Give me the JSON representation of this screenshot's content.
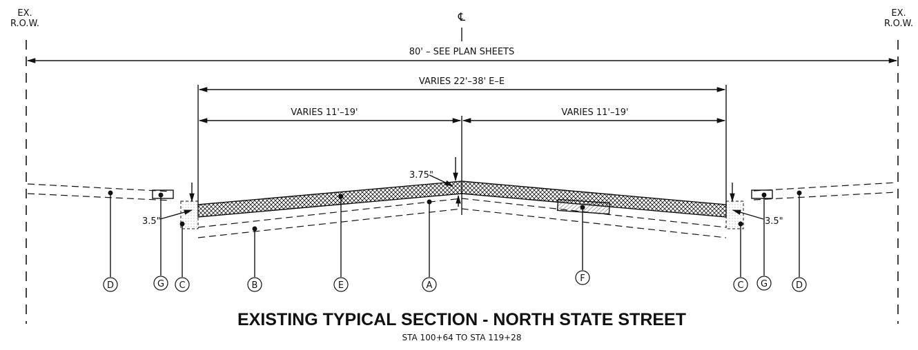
{
  "labels": {
    "row_left_line1": "EX.",
    "row_left_line2": "R.O.W.",
    "row_right_line1": "EX.",
    "row_right_line2": "R.O.W.",
    "centerline": "℄",
    "total_width": "80' – SEE PLAN SHEETS",
    "pavement_width": "VARIES 22'–38' E–E",
    "left_lane": "VARIES 11'–19'",
    "right_lane": "VARIES 11'–19'",
    "crown_thickness": "3.75\"",
    "left_edge_thickness": "3.5\"",
    "right_edge_thickness": "3.5\""
  },
  "callouts": [
    "D",
    "G",
    "C",
    "B",
    "E",
    "A",
    "F",
    "C",
    "G",
    "D"
  ],
  "title": "EXISTING TYPICAL SECTION - NORTH STATE STREET",
  "subtitle": "STA 100+64 TO STA 119+28"
}
